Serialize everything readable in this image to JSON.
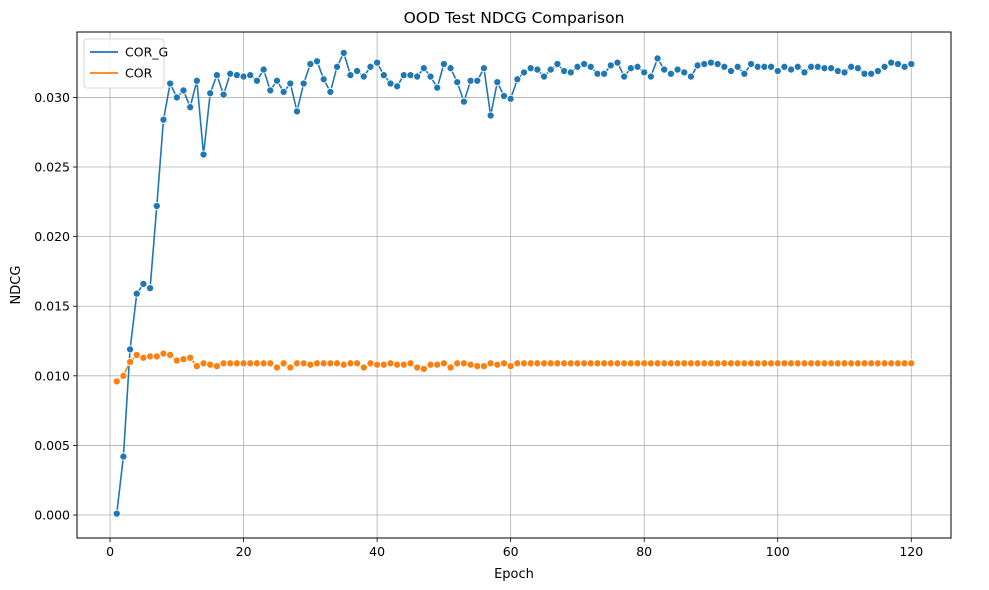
{
  "chart_data": {
    "type": "line",
    "title": "OOD Test NDCG Comparison",
    "xlabel": "Epoch",
    "ylabel": "NDCG",
    "xlim": [
      -4.95,
      125.95
    ],
    "ylim": [
      -0.00165,
      0.0347
    ],
    "xticks": [
      0,
      20,
      40,
      60,
      80,
      100,
      120
    ],
    "xtick_labels": [
      "0",
      "20",
      "40",
      "60",
      "80",
      "100",
      "120"
    ],
    "yticks": [
      0.0,
      0.005,
      0.01,
      0.015,
      0.02,
      0.025,
      0.03
    ],
    "ytick_labels": [
      "0.000",
      "0.005",
      "0.010",
      "0.015",
      "0.020",
      "0.025",
      "0.030"
    ],
    "grid": true,
    "legend_position": "top-left",
    "markers": "circle",
    "series": [
      {
        "name": "COR_G",
        "color": "#1f77b4",
        "x": [
          1,
          2,
          3,
          4,
          5,
          6,
          7,
          8,
          9,
          10,
          11,
          12,
          13,
          14,
          15,
          16,
          17,
          18,
          19,
          20,
          21,
          22,
          23,
          24,
          25,
          26,
          27,
          28,
          29,
          30,
          31,
          32,
          33,
          34,
          35,
          36,
          37,
          38,
          39,
          40,
          41,
          42,
          43,
          44,
          45,
          46,
          47,
          48,
          49,
          50,
          51,
          52,
          53,
          54,
          55,
          56,
          57,
          58,
          59,
          60,
          61,
          62,
          63,
          64,
          65,
          66,
          67,
          68,
          69,
          70,
          71,
          72,
          73,
          74,
          75,
          76,
          77,
          78,
          79,
          80,
          81,
          82,
          83,
          84,
          85,
          86,
          87,
          88,
          89,
          90,
          91,
          92,
          93,
          94,
          95,
          96,
          97,
          98,
          99,
          100,
          101,
          102,
          103,
          104,
          105,
          106,
          107,
          108,
          109,
          110,
          111,
          112,
          113,
          114,
          115,
          116,
          117,
          118,
          119,
          120
        ],
        "values": [
          0.0001,
          0.0042,
          0.0119,
          0.0159,
          0.0166,
          0.0163,
          0.0222,
          0.0284,
          0.031,
          0.03,
          0.0305,
          0.0293,
          0.0312,
          0.0259,
          0.0303,
          0.0316,
          0.0302,
          0.0317,
          0.0316,
          0.0315,
          0.0316,
          0.0312,
          0.032,
          0.0305,
          0.0312,
          0.0304,
          0.031,
          0.029,
          0.031,
          0.0324,
          0.0326,
          0.0313,
          0.0304,
          0.0322,
          0.0332,
          0.0316,
          0.0319,
          0.0315,
          0.0322,
          0.0325,
          0.0316,
          0.031,
          0.0308,
          0.0316,
          0.0316,
          0.0315,
          0.0321,
          0.0315,
          0.0307,
          0.0324,
          0.0321,
          0.0311,
          0.0297,
          0.0312,
          0.0312,
          0.0321,
          0.0287,
          0.0311,
          0.0301,
          0.0299,
          0.0313,
          0.0318,
          0.0321,
          0.032,
          0.0315,
          0.032,
          0.0324,
          0.0319,
          0.0318,
          0.0322,
          0.0324,
          0.0322,
          0.0317,
          0.0317,
          0.0323,
          0.0325,
          0.0315,
          0.0321,
          0.0322,
          0.0318,
          0.0315,
          0.0328,
          0.032,
          0.0317,
          0.032,
          0.0318,
          0.0315,
          0.0323,
          0.0324,
          0.0325,
          0.0324,
          0.0322,
          0.0319,
          0.0322,
          0.0317,
          0.0324,
          0.0322,
          0.0322,
          0.0322,
          0.0319,
          0.0322,
          0.032,
          0.0322,
          0.0318,
          0.0322,
          0.0322,
          0.0321,
          0.0321,
          0.0319,
          0.0318,
          0.0322,
          0.0321,
          0.0317,
          0.0317,
          0.0319,
          0.0322,
          0.0325,
          0.0324,
          0.0322,
          0.0324
        ]
      },
      {
        "name": "COR",
        "color": "#ff7f0e",
        "x": [
          1,
          2,
          3,
          4,
          5,
          6,
          7,
          8,
          9,
          10,
          11,
          12,
          13,
          14,
          15,
          16,
          17,
          18,
          19,
          20,
          21,
          22,
          23,
          24,
          25,
          26,
          27,
          28,
          29,
          30,
          31,
          32,
          33,
          34,
          35,
          36,
          37,
          38,
          39,
          40,
          41,
          42,
          43,
          44,
          45,
          46,
          47,
          48,
          49,
          50,
          51,
          52,
          53,
          54,
          55,
          56,
          57,
          58,
          59,
          60,
          61,
          62,
          63,
          64,
          65,
          66,
          67,
          68,
          69,
          70,
          71,
          72,
          73,
          74,
          75,
          76,
          77,
          78,
          79,
          80,
          81,
          82,
          83,
          84,
          85,
          86,
          87,
          88,
          89,
          90,
          91,
          92,
          93,
          94,
          95,
          96,
          97,
          98,
          99,
          100,
          101,
          102,
          103,
          104,
          105,
          106,
          107,
          108,
          109,
          110,
          111,
          112,
          113,
          114,
          115,
          116,
          117,
          118,
          119,
          120
        ],
        "values": [
          0.0096,
          0.01,
          0.011,
          0.0115,
          0.0113,
          0.0114,
          0.0114,
          0.0116,
          0.0115,
          0.0111,
          0.0112,
          0.0113,
          0.0107,
          0.0109,
          0.0108,
          0.0107,
          0.0109,
          0.0109,
          0.0109,
          0.0109,
          0.0109,
          0.0109,
          0.0109,
          0.0109,
          0.0106,
          0.0109,
          0.0106,
          0.0109,
          0.0109,
          0.0108,
          0.0109,
          0.0109,
          0.0109,
          0.0109,
          0.0108,
          0.0109,
          0.0109,
          0.0106,
          0.0109,
          0.0108,
          0.0108,
          0.0109,
          0.0108,
          0.0108,
          0.0109,
          0.0106,
          0.0105,
          0.0108,
          0.0108,
          0.0109,
          0.0106,
          0.0109,
          0.0109,
          0.0108,
          0.0107,
          0.0107,
          0.0109,
          0.0108,
          0.0109,
          0.0107,
          0.0109,
          0.0109,
          0.0109,
          0.0109,
          0.0109,
          0.0109,
          0.0109,
          0.0109,
          0.0109,
          0.0109,
          0.0109,
          0.0109,
          0.0109,
          0.0109,
          0.0109,
          0.0109,
          0.0109,
          0.0109,
          0.0109,
          0.0109,
          0.0109,
          0.0109,
          0.0109,
          0.0109,
          0.0109,
          0.0109,
          0.0109,
          0.0109,
          0.0109,
          0.0109,
          0.0109,
          0.0109,
          0.0109,
          0.0109,
          0.0109,
          0.0109,
          0.0109,
          0.0109,
          0.0109,
          0.0109,
          0.0109,
          0.0109,
          0.0109,
          0.0109,
          0.0109,
          0.0109,
          0.0109,
          0.0109,
          0.0109,
          0.0109,
          0.0109,
          0.0109,
          0.0109,
          0.0109,
          0.0109,
          0.0109,
          0.0109,
          0.0109,
          0.0109,
          0.0109
        ]
      }
    ]
  }
}
